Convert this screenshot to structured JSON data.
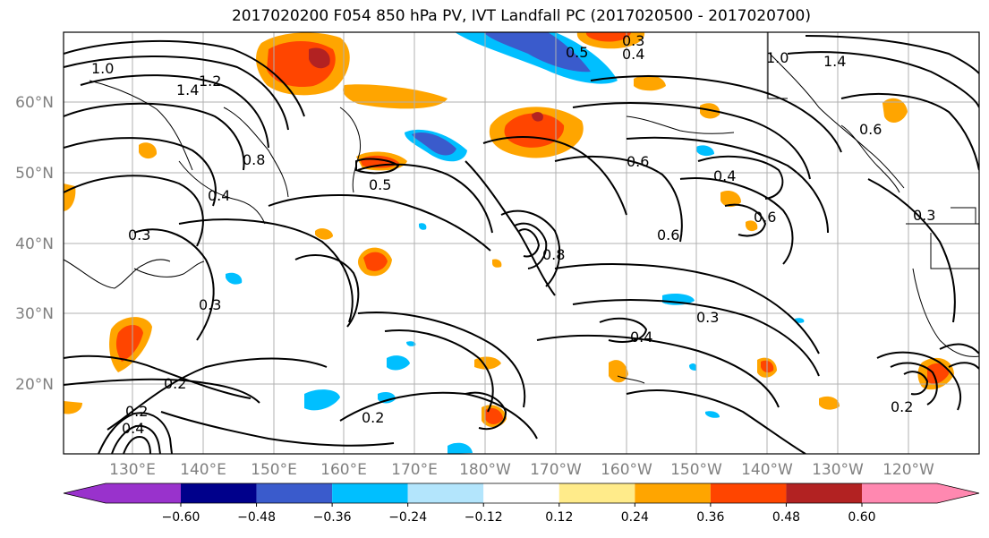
{
  "title": "2017020200 F054 850 hPa PV, IVT Landfall PC (2017020500 - 2017020700)",
  "lon_labels": [
    "130°E",
    "140°E",
    "150°E",
    "160°E",
    "170°E",
    "180°W",
    "170°W",
    "160°W",
    "150°W",
    "140°W",
    "130°W",
    "120°W"
  ],
  "lat_labels": [
    "60°N",
    "50°N",
    "40°N",
    "30°N",
    "20°N"
  ],
  "colorbar": {
    "ticks": [
      "−0.60",
      "−0.48",
      "−0.36",
      "−0.24",
      "−0.12",
      "0.12",
      "0.24",
      "0.36",
      "0.48",
      "0.60"
    ],
    "colors": [
      "#9932cc",
      "#00008b",
      "#3a5bcc",
      "#00bfff",
      "#b3e5fc",
      "#ffffff",
      "#ffeb8a",
      "#ffa500",
      "#ff4500",
      "#b22222",
      "#ff88b0"
    ]
  },
  "contour_labels": {
    "l1": "1.0",
    "l2": "1.4",
    "l3": "1.2",
    "l4": "0.8",
    "l5": "0.5",
    "l6": "0.4",
    "l7": "0.3",
    "l8": "0.2",
    "l9": "0.6",
    "l10": "0.8",
    "l11": "0.4",
    "l12": "0.6",
    "l13": "0.6",
    "l14": "0.3",
    "l15": "0.4",
    "l16": "0.2",
    "l17": "0.3",
    "l18": "0.5",
    "l19": "0.4",
    "l20": "0.3",
    "l21": "0.2",
    "l22": "0.2",
    "l23": "0.4",
    "l24": "1.4",
    "l25": "1.0",
    "l26": "0.3",
    "l27": "0.6"
  }
}
